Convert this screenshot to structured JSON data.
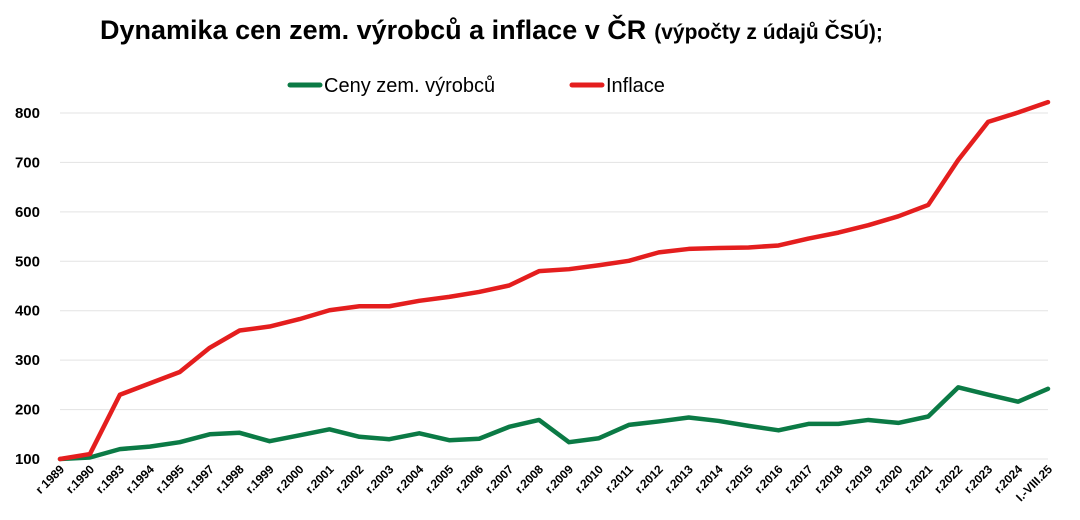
{
  "chart_data": {
    "type": "line",
    "title": "Dynamika cen zem. výrobců a inflace v ČR",
    "subtitle": "(výpočty z údajů ČSÚ);",
    "xlabel": "",
    "ylabel": "",
    "ylim": [
      100,
      800
    ],
    "yticks": [
      100,
      200,
      300,
      400,
      500,
      600,
      700,
      800
    ],
    "grid": true,
    "legend_position": "top",
    "categories": [
      "r 1989",
      "r.1990",
      "r.1993",
      "r.1994",
      "r.1995",
      "r.1997",
      "r.1998",
      "r.1999",
      "r.2000",
      "r.2001",
      "r.2002",
      "r.2003",
      "r.2004",
      "r.2005",
      "r.2006",
      "r.2007",
      "r.2008",
      "r.2009",
      "r.2010",
      "r.2011",
      "r.2012",
      "r.2013",
      "r.2014",
      "r.2015",
      "r.2016",
      "r.2017",
      "r.2018",
      "r.2019",
      "r.2020",
      "r.2021",
      "r.2022",
      "r.2023",
      "r.2024",
      "I.-VIII.25"
    ],
    "series": [
      {
        "name": "Ceny zem. výrobců",
        "color": "#0b7a45",
        "values": [
          100,
          103,
          120,
          125,
          134,
          150,
          153,
          136,
          148,
          160,
          145,
          140,
          152,
          138,
          141,
          165,
          179,
          134,
          142,
          169,
          176,
          184,
          177,
          167,
          158,
          171,
          171,
          179,
          173,
          186,
          245,
          230,
          216,
          242
        ]
      },
      {
        "name": "Inflace",
        "color": "#e41e1e",
        "values": [
          100,
          110,
          230,
          253,
          276,
          325,
          360,
          368,
          383,
          401,
          409,
          409,
          420,
          428,
          438,
          451,
          480,
          484,
          492,
          501,
          518,
          525,
          527,
          528,
          532,
          546,
          558,
          573,
          591,
          614,
          705,
          782,
          801,
          822
        ]
      }
    ]
  }
}
